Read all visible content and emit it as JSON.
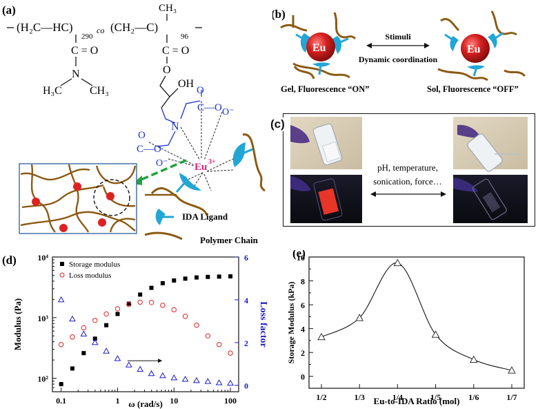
{
  "panels": {
    "a": {
      "tag": "(a)",
      "copolymer": {
        "left_block": "(H₂C—HC)",
        "left_n": "290",
        "co": "co",
        "right_block": "(CH₂—C)",
        "right_n": "96",
        "right_methyl": "CH₃",
        "left_pendant": [
          "C = O",
          "N",
          "H₃C",
          "CH₃"
        ],
        "right_pendant": [
          "C = O",
          "O",
          "OH"
        ]
      },
      "ida": {
        "n": "N",
        "co1": "C—O",
        "o_minus1": "O⁻",
        "co2": "C—O",
        "o_minus2": "O⁻",
        "o1": "O",
        "o2": "O"
      },
      "ion": {
        "symbol": "Eu",
        "charge": "3+"
      },
      "legend": {
        "ligand": "IDA Ligand",
        "chain": "Polymer Chain"
      }
    },
    "b": {
      "tag": "(b)",
      "eu_label": "Eu",
      "arrow_top": "Stimuli",
      "arrow_bottom": "Dynamic coordination",
      "left_caption": "Gel, Fluorescence “ON”",
      "right_caption": "Sol, Fluorescence “OFF”"
    },
    "c": {
      "tag": "(c)",
      "stimuli_line1": "pH, temperature,",
      "stimuli_line2": "sonication, force…"
    },
    "d": {
      "tag": "(d)"
    },
    "e": {
      "tag": "(e)"
    }
  },
  "colors": {
    "chain": "#8B5A14",
    "ligand": "#22A6D6",
    "eu_red": "#C81E1E",
    "eu3_pink": "#E0207A",
    "ida_blue": "#1A2FD0",
    "dash_green": "#21A33C",
    "loss_axis_blue": "#1a1acc"
  },
  "chart_data": [
    {
      "panel": "d",
      "type": "scatter",
      "xlabel": "ω (rad/s)",
      "ylabel": "Modulus (Pa)",
      "y2label": "Loss factor",
      "x_scale": "log",
      "y_scale": "log",
      "xlim": [
        0.07,
        140
      ],
      "ylim": [
        60,
        10000
      ],
      "y2lim": [
        -0.3,
        6
      ],
      "x_ticks": [
        "0.1",
        "1",
        "10",
        "100"
      ],
      "y_ticks": [
        "10²",
        "10³",
        "10⁴"
      ],
      "y2_ticks": [
        "0",
        "2",
        "4",
        "6"
      ],
      "legend_position": "top-left",
      "series": [
        {
          "name": "Storage modulus",
          "marker": "filled-square",
          "color": "#000000",
          "axis": "left",
          "x": [
            0.1,
            0.158,
            0.251,
            0.398,
            0.631,
            1.0,
            1.585,
            2.512,
            3.981,
            6.31,
            10,
            15.85,
            25.12,
            39.81,
            63.1,
            100
          ],
          "y": [
            80,
            145,
            260,
            450,
            750,
            1150,
            1700,
            2400,
            3100,
            3700,
            4100,
            4400,
            4600,
            4700,
            4750,
            4800
          ]
        },
        {
          "name": "Loss modulus",
          "marker": "open-circle",
          "color": "#e02020",
          "axis": "left",
          "x": [
            0.1,
            0.158,
            0.251,
            0.398,
            0.631,
            1.0,
            1.585,
            2.512,
            3.981,
            6.31,
            10,
            15.85,
            25.12,
            39.81,
            63.1,
            100
          ],
          "y": [
            360,
            480,
            680,
            900,
            1150,
            1400,
            1650,
            1800,
            1780,
            1600,
            1350,
            1050,
            750,
            500,
            360,
            260
          ]
        },
        {
          "name": "Loss factor",
          "marker": "open-triangle",
          "color": "#1a1acc",
          "axis": "right",
          "x": [
            0.1,
            0.158,
            0.251,
            0.398,
            0.631,
            1.0,
            1.585,
            2.512,
            3.981,
            6.31,
            10,
            15.85,
            25.12,
            39.81,
            63.1,
            100
          ],
          "y": [
            4.0,
            3.1,
            2.4,
            2.0,
            1.6,
            1.25,
            0.95,
            0.75,
            0.55,
            0.45,
            0.35,
            0.28,
            0.22,
            0.18,
            0.12,
            0.1
          ]
        }
      ]
    },
    {
      "panel": "e",
      "type": "scatter",
      "xlabel": "Eu-to-IDA Ratio (mol)",
      "ylabel": "Storage Modulus (kPa)",
      "categories": [
        "1/2",
        "1/3",
        "1/4",
        "1/5",
        "1/6",
        "1/7"
      ],
      "ylim": [
        -1,
        10
      ],
      "y_ticks": [
        "0",
        "2",
        "4",
        "6",
        "8",
        "10"
      ],
      "series": [
        {
          "marker": "open-triangle",
          "color": "#333333",
          "values": [
            3.3,
            4.9,
            9.5,
            3.5,
            1.4,
            0.5
          ]
        }
      ],
      "fit_line": true
    }
  ]
}
